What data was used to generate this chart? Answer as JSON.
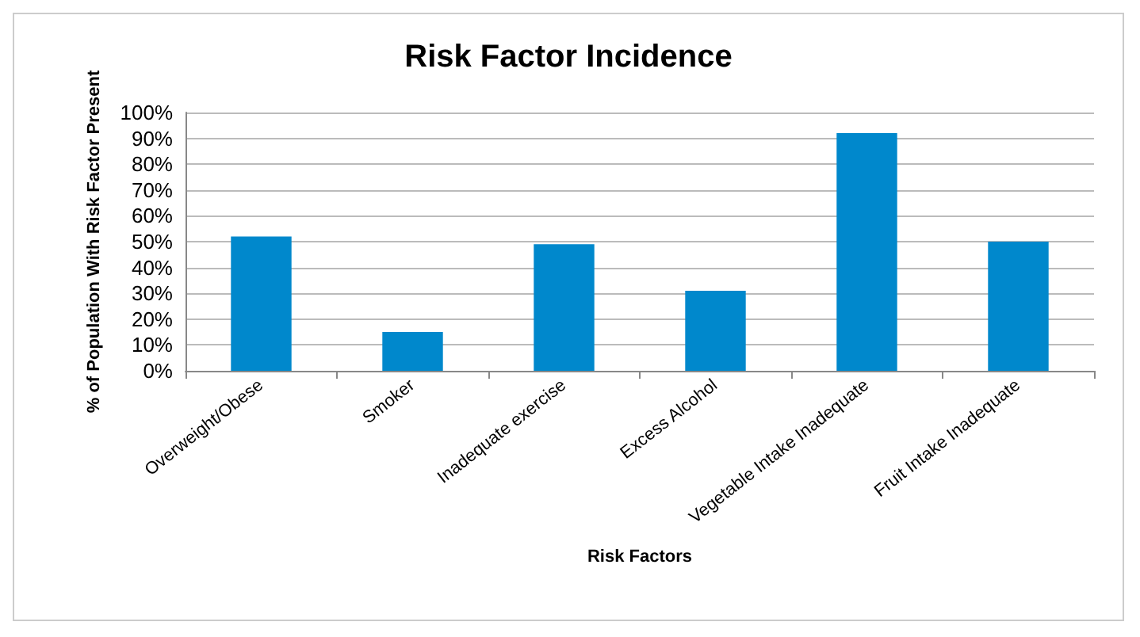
{
  "chart_data": {
    "type": "bar",
    "title": "Risk Factor Incidence",
    "xlabel": "Risk Factors",
    "ylabel": "% of Population With Risk Factor Present",
    "categories": [
      "Overweight/Obese",
      "Smoker",
      "Inadequate exercise",
      "Excess Alcohol",
      "Vegetable Intake Inadequate",
      "Fruit Intake Inadequate"
    ],
    "values": [
      52,
      15,
      49,
      31,
      92,
      50
    ],
    "color": "#0088cc",
    "ylim": [
      0,
      100
    ],
    "yticks": [
      {
        "value": 0,
        "label": "0%"
      },
      {
        "value": 10,
        "label": "10%"
      },
      {
        "value": 20,
        "label": "20%"
      },
      {
        "value": 30,
        "label": "30%"
      },
      {
        "value": 40,
        "label": "40%"
      },
      {
        "value": 50,
        "label": "50%"
      },
      {
        "value": 60,
        "label": "60%"
      },
      {
        "value": 70,
        "label": "70%"
      },
      {
        "value": 80,
        "label": "80%"
      },
      {
        "value": 90,
        "label": "90%"
      },
      {
        "value": 100,
        "label": "100%"
      }
    ],
    "grid": "y"
  }
}
